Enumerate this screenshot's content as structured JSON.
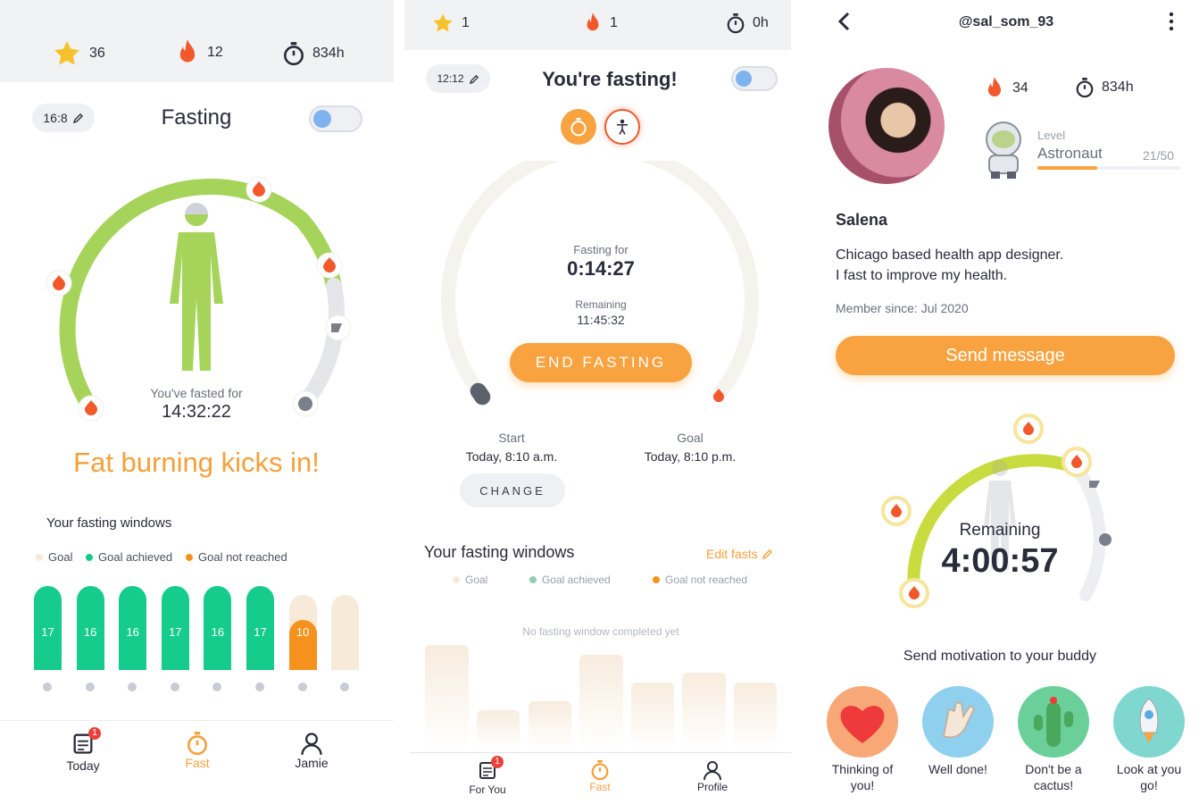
{
  "screen1": {
    "stats": {
      "stars": "36",
      "streak": "12",
      "hours": "834h"
    },
    "plan": "16:8",
    "title": "Fasting",
    "fasted_label": "You've fasted for",
    "fasted_time": "14:32:22",
    "headline": "Fat burning kicks in!",
    "windows_title": "Your fasting windows",
    "legend": {
      "goal": "Goal",
      "achieved": "Goal achieved",
      "not_reached": "Goal not reached"
    },
    "bars": [
      {
        "label": "17",
        "status": "achieved"
      },
      {
        "label": "16",
        "status": "achieved"
      },
      {
        "label": "16",
        "status": "achieved"
      },
      {
        "label": "17",
        "status": "achieved"
      },
      {
        "label": "16",
        "status": "achieved"
      },
      {
        "label": "17",
        "status": "achieved"
      },
      {
        "label": "10",
        "status": "not_reached"
      },
      {
        "label": "",
        "status": "goal"
      }
    ],
    "nav": {
      "today": "Today",
      "fast": "Fast",
      "profile": "Jamie",
      "badge": "1"
    }
  },
  "screen2": {
    "stats": {
      "stars": "1",
      "streak": "1",
      "hours": "0h"
    },
    "time_pill": "12:12",
    "title": "You're fasting!",
    "fasting_for_label": "Fasting for",
    "fasting_for_time": "0:14:27",
    "remaining_label": "Remaining",
    "remaining_time": "11:45:32",
    "end_button": "END FASTING",
    "start_label": "Start",
    "start_value": "Today, 8:10 a.m.",
    "goal_label": "Goal",
    "goal_value": "Today, 8:10 p.m.",
    "change_button": "CHANGE",
    "windows_title": "Your fasting windows",
    "edit_fasts": "Edit fasts",
    "legend": {
      "goal": "Goal",
      "achieved": "Goal achieved",
      "not_reached": "Goal not reached"
    },
    "empty_message": "No fasting window completed yet",
    "nav": {
      "today": "For You",
      "fast": "Fast",
      "profile": "Profile",
      "badge": "1"
    }
  },
  "screen3": {
    "username": "@sal_som_93",
    "streak": "34",
    "hours": "834h",
    "level_label": "Level",
    "level_name": "Astronaut",
    "level_progress_text": "21/50",
    "level_progress": 0.42,
    "name": "Salena",
    "bio_line1": "Chicago based health app designer.",
    "bio_line2": "I fast to improve my health.",
    "member_since": "Member since: Jul 2020",
    "send_button": "Send message",
    "remaining_label": "Remaining",
    "remaining_time": "4:00:57",
    "motivation_title": "Send motivation to your buddy",
    "motivations": [
      {
        "label1": "Thinking of",
        "label2": "you!"
      },
      {
        "label1": "Well done!",
        "label2": ""
      },
      {
        "label1": "Don't be a",
        "label2": "cactus!"
      },
      {
        "label1": "Look at you",
        "label2": "go!"
      }
    ]
  },
  "colors": {
    "accent_orange": "#f8a340",
    "green_arc": "#a6d35a",
    "teal_bar": "#16cc8c",
    "orange_bar": "#f5921e",
    "goal_bar": "#f7ead8",
    "flame": "#f1582b"
  },
  "icons": [
    "star-icon",
    "flame-icon",
    "stopwatch-icon",
    "pencil-icon",
    "toggle-icon",
    "body-icon",
    "today-icon",
    "user-icon",
    "back-icon",
    "more-icon",
    "heart-icon",
    "clap-icon",
    "cactus-icon",
    "rocket-icon",
    "astronaut-icon"
  ]
}
